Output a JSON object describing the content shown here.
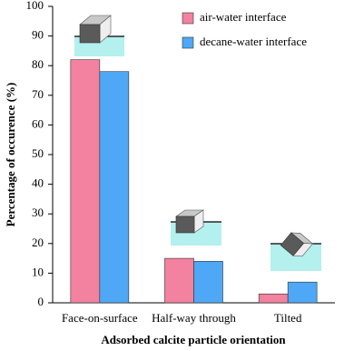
{
  "chart_data": {
    "type": "bar",
    "categories": [
      "Face-on-surface",
      "Half-way through",
      "Tilted"
    ],
    "series": [
      {
        "name": "air-water interface",
        "color": "#f2829f",
        "values": [
          82,
          15,
          3
        ]
      },
      {
        "name": "decane-water interface",
        "color": "#4ea8f5",
        "values": [
          78,
          14,
          7
        ]
      }
    ],
    "x_label": "Adsorbed calcite particle orientation",
    "y_label": "Percentage of occurence (%)",
    "ylim": [
      0,
      100
    ],
    "yticks": [
      0,
      10,
      20,
      30,
      40,
      50,
      60,
      70,
      80,
      90,
      100
    ],
    "grid": false,
    "legend": "upper right"
  }
}
